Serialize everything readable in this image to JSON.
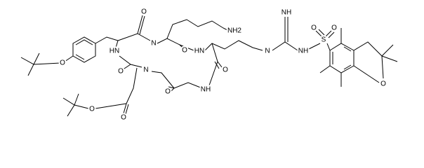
{
  "atoms": [
    "O",
    "NH2",
    "O",
    "HN",
    "N",
    "O",
    "HN",
    "O",
    "N",
    "O",
    "NH",
    "O",
    "O",
    "O",
    "NH",
    "N",
    "NH",
    "S",
    "O",
    "O",
    "O"
  ]
}
